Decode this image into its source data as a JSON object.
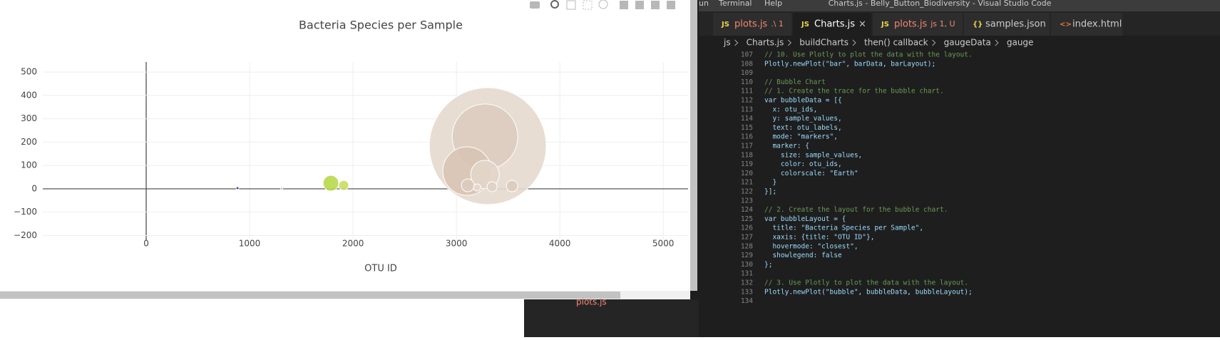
{
  "chart_data": {
    "type": "scatter",
    "title": "Bacteria Species per Sample",
    "x_label": "OTU ID",
    "x": [
      3303,
      3276,
      3103,
      3276,
      3110,
      3345,
      3538,
      3200,
      1786,
      1910,
      883,
      1310
    ],
    "values": [
      183,
      223,
      76,
      61,
      15,
      9,
      12,
      6,
      24,
      15,
      3,
      1
    ],
    "sizes": [
      164,
      92,
      68,
      40,
      18,
      14,
      16,
      10,
      22,
      14,
      4,
      3
    ],
    "colors": [
      "#e6d9ce",
      "#ddccbf",
      "#d8c4b4",
      "#e3d5ca",
      "#dccbbd",
      "#e0d2c6",
      "#dccbbe",
      "#e4d8cd",
      "#b8d84c",
      "#cadd60",
      "#2b30cf",
      "#8fa3c4"
    ],
    "xlim": [
      -1000,
      5240
    ],
    "ylim": [
      -220,
      543
    ],
    "xticks": [
      0,
      1000,
      2000,
      3000,
      4000,
      5000
    ],
    "yticks": [
      {
        "value": -200,
        "label": "−200"
      },
      {
        "value": -100,
        "label": "−100"
      },
      0,
      100,
      200,
      300,
      400,
      500
    ],
    "grid": true
  },
  "window": {
    "menu": [
      "un",
      "Terminal",
      "Help"
    ],
    "title": "Charts.js - Belly_Button_Biodiversity - Visual Studio Code"
  },
  "tabs": [
    {
      "icon": "JS",
      "name": "plots.js",
      "detail": ".\\ 1"
    },
    {
      "icon": "JS",
      "name": "Charts.js"
    },
    {
      "icon": "JS",
      "name": "plots.js",
      "detail": "js 1, U"
    },
    {
      "icon": "{}",
      "name": "samples.json"
    },
    {
      "icon": "<>",
      "name": "index.html"
    }
  ],
  "breadcrumb": [
    "js",
    "Charts.js",
    "buildCharts",
    "then() callback",
    "gaugeData",
    "gauge"
  ],
  "line_numbers": [
    107,
    108,
    109,
    110,
    111,
    112,
    113,
    114,
    115,
    116,
    117,
    118,
    119,
    120,
    121,
    122,
    123,
    124,
    125,
    126,
    127,
    128,
    129,
    130,
    131,
    132,
    133,
    134
  ],
  "lines": [
    "// 10. Use Plotly to plot the data with the layout.",
    "Plotly.newPlot(\"bar\", barData, barLayout);",
    null,
    "// Bubble Chart",
    "// 1. Create the trace for the bubble chart.",
    "var bubbleData = [{",
    "  x: otu_ids,",
    "  y: sample_values,",
    "  text: otu_labels,",
    "  mode: \"markers\",",
    "  marker: {",
    "    size: sample_values,",
    "    color: otu_ids,",
    "    colorscale: \"Earth\"",
    "  }",
    "}];",
    null,
    "// 2. Create the layout for the bubble chart.",
    "var bubbleLayout = {",
    "  title: \"Bacteria Species per Sample\",",
    "  xaxis: {title: \"OTU ID\"},",
    "  hovermode: \"closest\",",
    "  showlegend: false",
    "};",
    null,
    "// 3. Use Plotly to plot the data with the layout.",
    "Plotly.newPlot(\"bubble\", bubbleData, bubbleLayout);",
    null
  ],
  "bottom_file": "plots.js"
}
